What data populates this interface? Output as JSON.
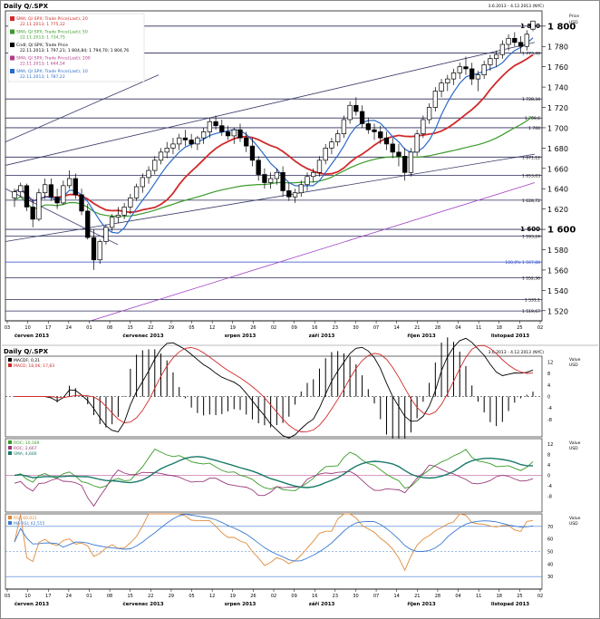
{
  "header": {
    "title": "Daily Q/.SPX",
    "date_range": "3.6.2013 - 4.12.2013 (NYC)",
    "axis_caption_1": "Price",
    "axis_caption_2": "USD"
  },
  "lower_header": {
    "title": "Daily Q/.SPX",
    "date_range": "3.6.2013 - 4.12.2013 (NYC)"
  },
  "legend": [
    {
      "label": "SMA; Q/.SPX; Trade Price(Last); 20",
      "value": "22.11.2013; 1 775,32",
      "color": "#d12a2a"
    },
    {
      "label": "SMA; Q/.SPX; Trade Price(Last); 50",
      "value": "22.11.2013; 1 734,75",
      "color": "#3a9a2a"
    },
    {
      "label": "Cndl; Q/.SPX; Trade Price",
      "value": "22.11.2013; 1 797,21; 1 804,84; 1 794,70; 1 804,76",
      "color": "#000000"
    },
    {
      "label": "SMA; Q/.SPX; Trade Price(Last); 200",
      "value": "22.11.2013; 1 644,54",
      "color": "#b03a8a"
    },
    {
      "label": "SMA; Q/.SPX; Trade Price(Last); 10",
      "value": "22.11.2013; 1 787,22",
      "color": "#2a6ac8"
    }
  ],
  "months": [
    "červen 2013",
    "červenec 2013",
    "srpen 2013",
    "září 2013",
    "říjen 2013",
    "listopad 2013"
  ],
  "day_ticks": [
    "03",
    "10",
    "17",
    "24",
    "01",
    "08",
    "15",
    "22",
    "29",
    "05",
    "12",
    "19",
    "26",
    "02",
    "09",
    "16",
    "23",
    "30",
    "07",
    "14",
    "21",
    "28",
    "04",
    "11",
    "18",
    "25",
    "02"
  ],
  "price_axis_labels": [
    "1 800",
    "1 780",
    "1 760",
    "1 740",
    "1 720",
    "1 700",
    "1 680",
    "1 660",
    "1 640",
    "1 620",
    "1 600",
    "1 580",
    "1 560",
    "1 540",
    "1 520"
  ],
  "level_labels": [
    {
      "text": "1 800",
      "value": 1800
    },
    {
      "text": "1 773,49",
      "value": 1773.49
    },
    {
      "text": "1 728,34",
      "value": 1728.34
    },
    {
      "text": "1 709,6",
      "value": 1709.6
    },
    {
      "text": "1 700",
      "value": 1700
    },
    {
      "text": "1 671,12",
      "value": 1671.12
    },
    {
      "text": "1 653,03",
      "value": 1653.03
    },
    {
      "text": "1 628,72",
      "value": 1628.72
    },
    {
      "text": "1 600",
      "value": 1600
    },
    {
      "text": "1 593,24",
      "value": 1593.24
    },
    {
      "text": "100,0% 1 567,88",
      "value": 1567.88
    },
    {
      "text": "1 552,36",
      "value": 1552.36
    },
    {
      "text": "1 531,1",
      "value": 1531.1
    },
    {
      "text": "1 519,67",
      "value": 1519.67
    }
  ],
  "macd_legend": [
    {
      "label": "MACDF; 0,21",
      "color": "#000000"
    },
    {
      "label": "MACD; 18,06; 17,83",
      "color": "#d12a2a"
    }
  ],
  "macd_axis": [
    "12",
    "8",
    "4",
    "0",
    "-4",
    "-8"
  ],
  "roc_legend": [
    {
      "label": "ROC; 10,169",
      "color": "#3a9a2a"
    },
    {
      "label": "ROC; 2,667",
      "color": "#9a3a7a"
    },
    {
      "label": "SMA; 4,666",
      "color": "#1a7a6a"
    }
  ],
  "roc_axis": [
    "12",
    "8",
    "4",
    "0",
    "-4",
    "-8"
  ],
  "rsi_legend": [
    {
      "label": "RSI; 60,021",
      "color": "#e08a3a"
    },
    {
      "label": "MA-RSI; 62,555",
      "color": "#3a7ad0"
    }
  ],
  "rsi_axis": [
    "70",
    "60",
    "50",
    "40",
    "30"
  ],
  "value_caption": "Value",
  "usd_caption": "USD",
  "chart_data": {
    "type": "candlestick",
    "title": "Daily Q/.SPX",
    "ylim": [
      1510,
      1815
    ],
    "ylabel": "Price USD",
    "candles": [
      [
        1631,
        1640,
        1622,
        1637
      ],
      [
        1637,
        1646,
        1632,
        1643
      ],
      [
        1643,
        1645,
        1618,
        1622
      ],
      [
        1622,
        1630,
        1602,
        1610
      ],
      [
        1610,
        1640,
        1608,
        1636
      ],
      [
        1636,
        1650,
        1630,
        1644
      ],
      [
        1644,
        1650,
        1628,
        1632
      ],
      [
        1632,
        1640,
        1620,
        1626
      ],
      [
        1626,
        1648,
        1624,
        1643
      ],
      [
        1643,
        1658,
        1640,
        1650
      ],
      [
        1650,
        1655,
        1630,
        1634
      ],
      [
        1634,
        1640,
        1614,
        1618
      ],
      [
        1618,
        1625,
        1590,
        1592
      ],
      [
        1592,
        1600,
        1560,
        1570
      ],
      [
        1570,
        1590,
        1566,
        1588
      ],
      [
        1588,
        1605,
        1585,
        1602
      ],
      [
        1602,
        1615,
        1598,
        1612
      ],
      [
        1612,
        1622,
        1606,
        1614
      ],
      [
        1614,
        1626,
        1610,
        1622
      ],
      [
        1622,
        1635,
        1615,
        1631
      ],
      [
        1631,
        1645,
        1628,
        1642
      ],
      [
        1642,
        1655,
        1636,
        1651
      ],
      [
        1651,
        1662,
        1645,
        1658
      ],
      [
        1658,
        1672,
        1654,
        1668
      ],
      [
        1668,
        1680,
        1664,
        1676
      ],
      [
        1676,
        1686,
        1670,
        1680
      ],
      [
        1680,
        1690,
        1674,
        1684
      ],
      [
        1684,
        1694,
        1678,
        1690
      ],
      [
        1690,
        1698,
        1682,
        1688
      ],
      [
        1688,
        1694,
        1680,
        1684
      ],
      [
        1684,
        1692,
        1678,
        1690
      ],
      [
        1690,
        1700,
        1684,
        1696
      ],
      [
        1696,
        1710,
        1690,
        1706
      ],
      [
        1706,
        1712,
        1698,
        1702
      ],
      [
        1702,
        1708,
        1692,
        1696
      ],
      [
        1696,
        1702,
        1688,
        1692
      ],
      [
        1692,
        1700,
        1684,
        1698
      ],
      [
        1698,
        1704,
        1686,
        1690
      ],
      [
        1690,
        1696,
        1676,
        1682
      ],
      [
        1682,
        1690,
        1662,
        1668
      ],
      [
        1668,
        1672,
        1648,
        1654
      ],
      [
        1654,
        1660,
        1640,
        1646
      ],
      [
        1646,
        1656,
        1640,
        1650
      ],
      [
        1650,
        1660,
        1644,
        1656
      ],
      [
        1656,
        1662,
        1632,
        1638
      ],
      [
        1638,
        1646,
        1628,
        1632
      ],
      [
        1632,
        1640,
        1626,
        1636
      ],
      [
        1636,
        1648,
        1632,
        1644
      ],
      [
        1644,
        1656,
        1638,
        1652
      ],
      [
        1652,
        1660,
        1646,
        1656
      ],
      [
        1656,
        1672,
        1652,
        1668
      ],
      [
        1668,
        1684,
        1664,
        1680
      ],
      [
        1680,
        1690,
        1674,
        1686
      ],
      [
        1686,
        1698,
        1682,
        1694
      ],
      [
        1694,
        1712,
        1690,
        1708
      ],
      [
        1708,
        1726,
        1704,
        1722
      ],
      [
        1722,
        1730,
        1712,
        1716
      ],
      [
        1716,
        1722,
        1700,
        1704
      ],
      [
        1704,
        1710,
        1694,
        1698
      ],
      [
        1698,
        1704,
        1688,
        1696
      ],
      [
        1696,
        1702,
        1684,
        1690
      ],
      [
        1690,
        1696,
        1678,
        1684
      ],
      [
        1684,
        1690,
        1670,
        1676
      ],
      [
        1676,
        1684,
        1662,
        1672
      ],
      [
        1672,
        1680,
        1648,
        1656
      ],
      [
        1656,
        1680,
        1652,
        1676
      ],
      [
        1676,
        1698,
        1672,
        1694
      ],
      [
        1694,
        1712,
        1690,
        1708
      ],
      [
        1708,
        1724,
        1704,
        1720
      ],
      [
        1720,
        1740,
        1716,
        1736
      ],
      [
        1736,
        1748,
        1730,
        1744
      ],
      [
        1744,
        1752,
        1736,
        1748
      ],
      [
        1748,
        1758,
        1742,
        1754
      ],
      [
        1754,
        1764,
        1748,
        1760
      ],
      [
        1760,
        1770,
        1752,
        1758
      ],
      [
        1758,
        1764,
        1742,
        1748
      ],
      [
        1748,
        1756,
        1736,
        1752
      ],
      [
        1752,
        1766,
        1748,
        1762
      ],
      [
        1762,
        1772,
        1756,
        1768
      ],
      [
        1768,
        1776,
        1760,
        1772
      ],
      [
        1772,
        1786,
        1768,
        1782
      ],
      [
        1782,
        1792,
        1776,
        1788
      ],
      [
        1788,
        1794,
        1780,
        1784
      ],
      [
        1784,
        1790,
        1774,
        1780
      ],
      [
        1780,
        1796,
        1776,
        1792
      ],
      [
        1797,
        1805,
        1795,
        1805
      ]
    ],
    "sma20_level": 1775.32,
    "sma50_level": 1734.75,
    "sma200_level": 1644.54,
    "sma10_level": 1787.22,
    "last": {
      "open": 1797.21,
      "high": 1804.84,
      "low": 1794.7,
      "close": 1804.76
    }
  }
}
